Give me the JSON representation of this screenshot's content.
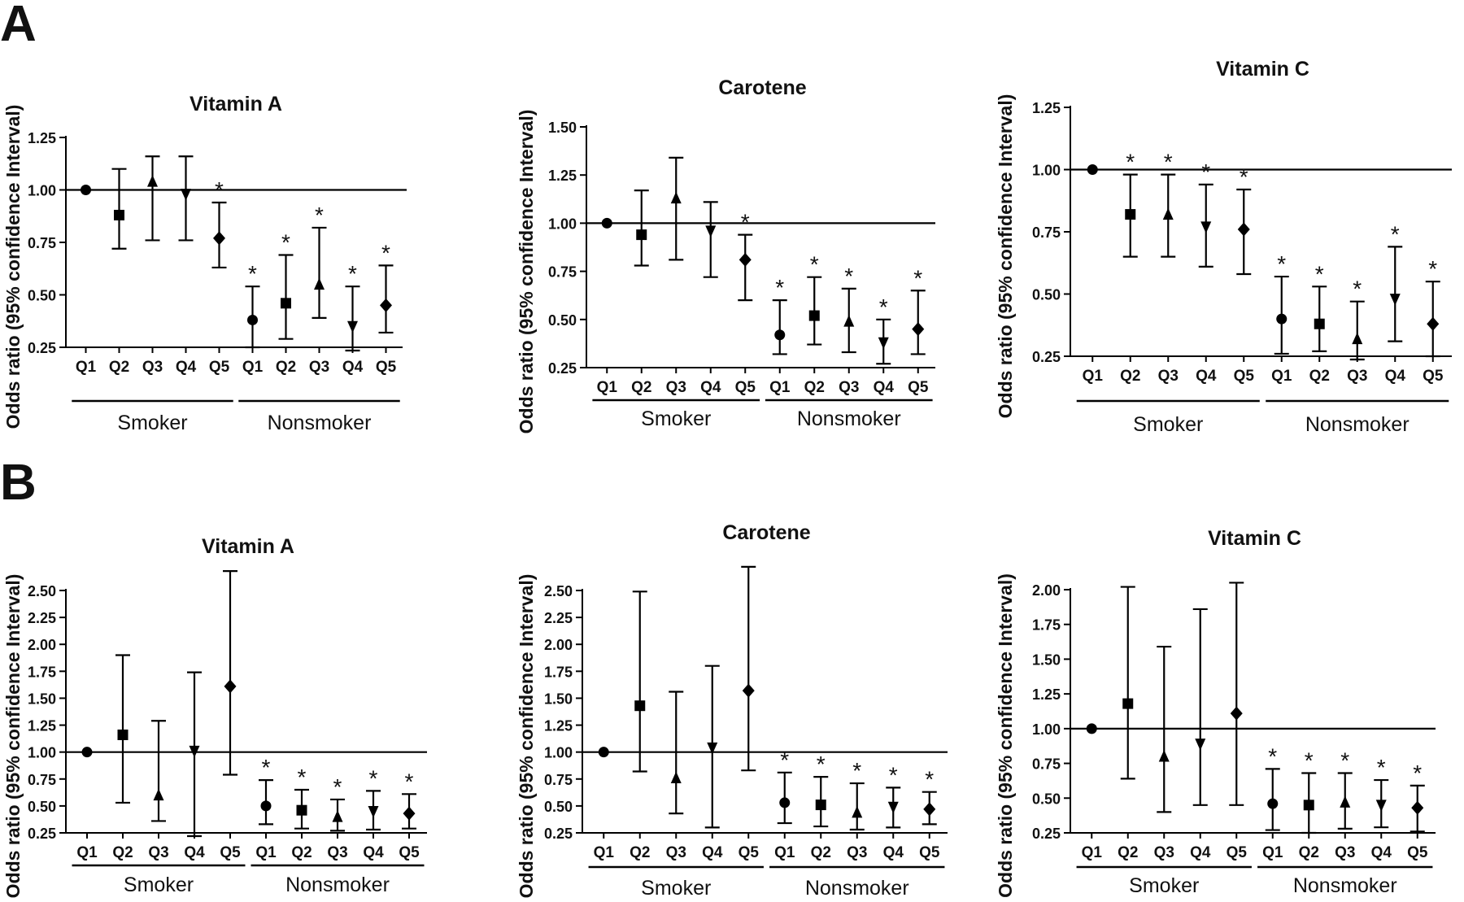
{
  "panel_labels": [
    "A",
    "B"
  ],
  "chart_data": [
    {
      "panel": "A",
      "type": "scatter",
      "title": "Vitamin A",
      "ylabel": "Odds ratio (95% confidence Interval)",
      "ylim": [
        0.25,
        1.25
      ],
      "yticks": [
        "0.25",
        "0.50",
        "0.75",
        "1.00",
        "1.25"
      ],
      "categories": [
        "Q1",
        "Q2",
        "Q3",
        "Q4",
        "Q5",
        "Q1",
        "Q2",
        "Q3",
        "Q4",
        "Q5"
      ],
      "groups": [
        {
          "label": "Smoker",
          "from": 0,
          "to": 4
        },
        {
          "label": "Nonsmoker",
          "from": 5,
          "to": 9
        }
      ],
      "reference_line": 1.0,
      "values": [
        1.0,
        0.88,
        1.04,
        0.98,
        0.77,
        0.38,
        0.46,
        0.55,
        0.35,
        0.45
      ],
      "lower": [
        null,
        0.72,
        0.76,
        0.76,
        0.63,
        0.25,
        0.29,
        0.39,
        0.2,
        0.32
      ],
      "upper": [
        null,
        1.1,
        1.16,
        1.16,
        0.94,
        0.54,
        0.69,
        0.82,
        0.54,
        0.64
      ],
      "significant": [
        false,
        false,
        false,
        false,
        true,
        true,
        true,
        true,
        true,
        true
      ],
      "markers": [
        "circle",
        "square",
        "triangle",
        "triangle-down",
        "diamond",
        "circle",
        "square",
        "triangle",
        "triangle-down",
        "diamond"
      ],
      "grid": false
    },
    {
      "panel": "A",
      "type": "scatter",
      "title": "Carotene",
      "ylabel": "Odds ratio (95% confidence Interval)",
      "ylim": [
        0.25,
        1.5
      ],
      "yticks": [
        "0.25",
        "0.50",
        "0.75",
        "1.00",
        "1.25",
        "1.50"
      ],
      "categories": [
        "Q1",
        "Q2",
        "Q3",
        "Q4",
        "Q5",
        "Q1",
        "Q2",
        "Q3",
        "Q4",
        "Q5"
      ],
      "groups": [
        {
          "label": "Smoker",
          "from": 0,
          "to": 4
        },
        {
          "label": "Nonsmoker",
          "from": 5,
          "to": 9
        }
      ],
      "reference_line": 1.0,
      "values": [
        1.0,
        0.94,
        1.13,
        0.96,
        0.81,
        0.42,
        0.52,
        0.49,
        0.38,
        0.45
      ],
      "lower": [
        null,
        0.78,
        0.81,
        0.72,
        0.6,
        0.32,
        0.37,
        0.33,
        0.27,
        0.32
      ],
      "upper": [
        null,
        1.17,
        1.34,
        1.11,
        0.94,
        0.6,
        0.72,
        0.66,
        0.5,
        0.65
      ],
      "significant": [
        false,
        false,
        false,
        false,
        true,
        true,
        true,
        true,
        true,
        true
      ],
      "markers": [
        "circle",
        "square",
        "triangle",
        "triangle-down",
        "diamond",
        "circle",
        "square",
        "triangle",
        "triangle-down",
        "diamond"
      ],
      "grid": false
    },
    {
      "panel": "A",
      "type": "scatter",
      "title": "Vitamin C",
      "ylabel": "Odds ratio (95% confidence Interval)",
      "ylim": [
        0.25,
        1.25
      ],
      "yticks": [
        "0.25",
        "0.50",
        "0.75",
        "1.00",
        "1.25"
      ],
      "categories": [
        "Q1",
        "Q2",
        "Q3",
        "Q4",
        "Q5",
        "Q1",
        "Q2",
        "Q3",
        "Q4",
        "Q5"
      ],
      "groups": [
        {
          "label": "Smoker",
          "from": 0,
          "to": 4
        },
        {
          "label": "Nonsmoker",
          "from": 5,
          "to": 9
        }
      ],
      "reference_line": 1.0,
      "values": [
        1.0,
        0.82,
        0.82,
        0.77,
        0.76,
        0.4,
        0.38,
        0.32,
        0.48,
        0.38
      ],
      "lower": [
        null,
        0.65,
        0.65,
        0.61,
        0.58,
        0.26,
        0.27,
        0.22,
        0.31,
        0.25
      ],
      "upper": [
        null,
        0.98,
        0.98,
        0.94,
        0.92,
        0.57,
        0.53,
        0.47,
        0.69,
        0.55
      ],
      "significant": [
        false,
        true,
        true,
        true,
        true,
        true,
        true,
        true,
        true,
        true
      ],
      "markers": [
        "circle",
        "square",
        "triangle",
        "triangle-down",
        "diamond",
        "circle",
        "square",
        "triangle",
        "triangle-down",
        "diamond"
      ],
      "grid": false
    },
    {
      "panel": "B",
      "type": "scatter",
      "title": "Vitamin A",
      "ylabel": "Odds ratio (95% confidence Interval)",
      "ylim": [
        0.25,
        2.5
      ],
      "yticks": [
        "0.25",
        "0.50",
        "0.75",
        "1.00",
        "1.25",
        "1.50",
        "1.75",
        "2.00",
        "2.25",
        "2.50"
      ],
      "categories": [
        "Q1",
        "Q2",
        "Q3",
        "Q4",
        "Q5",
        "Q1",
        "Q2",
        "Q3",
        "Q4",
        "Q5"
      ],
      "groups": [
        {
          "label": "Smoker",
          "from": 0,
          "to": 4
        },
        {
          "label": "Nonsmoker",
          "from": 5,
          "to": 9
        }
      ],
      "reference_line": 1.0,
      "values": [
        1.0,
        1.16,
        0.6,
        1.01,
        1.61,
        0.5,
        0.46,
        0.4,
        0.45,
        0.43
      ],
      "lower": [
        null,
        0.53,
        0.36,
        0.17,
        0.79,
        0.33,
        0.29,
        0.27,
        0.28,
        0.29
      ],
      "upper": [
        null,
        1.9,
        1.29,
        1.74,
        2.68,
        0.74,
        0.65,
        0.56,
        0.64,
        0.61
      ],
      "significant": [
        false,
        false,
        false,
        false,
        false,
        true,
        true,
        true,
        true,
        true
      ],
      "markers": [
        "circle",
        "square",
        "triangle",
        "triangle-down",
        "diamond",
        "circle",
        "square",
        "triangle",
        "triangle-down",
        "diamond"
      ],
      "grid": false
    },
    {
      "panel": "B",
      "type": "scatter",
      "title": "Carotene",
      "ylabel": "Odds ratio (95% confidence Interval)",
      "ylim": [
        0.25,
        2.5
      ],
      "yticks": [
        "0.25",
        "0.50",
        "0.75",
        "1.00",
        "1.25",
        "1.50",
        "1.75",
        "2.00",
        "2.25",
        "2.50"
      ],
      "categories": [
        "Q1",
        "Q2",
        "Q3",
        "Q4",
        "Q5",
        "Q1",
        "Q2",
        "Q3",
        "Q4",
        "Q5"
      ],
      "groups": [
        {
          "label": "Smoker",
          "from": 0,
          "to": 4
        },
        {
          "label": "Nonsmoker",
          "from": 5,
          "to": 9
        }
      ],
      "reference_line": 1.0,
      "values": [
        1.0,
        1.43,
        0.76,
        1.04,
        1.57,
        0.53,
        0.51,
        0.44,
        0.49,
        0.47
      ],
      "lower": [
        null,
        0.82,
        0.43,
        0.3,
        0.83,
        0.34,
        0.31,
        0.28,
        0.3,
        0.33
      ],
      "upper": [
        null,
        2.49,
        1.56,
        1.8,
        2.72,
        0.81,
        0.77,
        0.71,
        0.67,
        0.63
      ],
      "significant": [
        false,
        false,
        false,
        false,
        false,
        true,
        true,
        true,
        true,
        true
      ],
      "markers": [
        "circle",
        "square",
        "triangle",
        "triangle-down",
        "diamond",
        "circle",
        "square",
        "triangle",
        "triangle-down",
        "diamond"
      ],
      "grid": false
    },
    {
      "panel": "B",
      "type": "scatter",
      "title": "Vitamin C",
      "ylabel": "Odds ratio (95% confidence Interval)",
      "ylim": [
        0.25,
        2.0
      ],
      "yticks": [
        "0.25",
        "0.50",
        "0.75",
        "1.00",
        "1.25",
        "1.50",
        "1.75",
        "2.00"
      ],
      "categories": [
        "Q1",
        "Q2",
        "Q3",
        "Q4",
        "Q5",
        "Q1",
        "Q2",
        "Q3",
        "Q4",
        "Q5"
      ],
      "groups": [
        {
          "label": "Smoker",
          "from": 0,
          "to": 4
        },
        {
          "label": "Nonsmoker",
          "from": 5,
          "to": 9
        }
      ],
      "reference_line": 1.0,
      "values": [
        1.0,
        1.18,
        0.8,
        0.89,
        1.11,
        0.46,
        0.45,
        0.47,
        0.45,
        0.43
      ],
      "lower": [
        null,
        0.64,
        0.4,
        0.45,
        0.45,
        0.27,
        0.25,
        0.28,
        0.29,
        0.26
      ],
      "upper": [
        null,
        2.02,
        1.59,
        1.86,
        2.05,
        0.71,
        0.68,
        0.68,
        0.63,
        0.59
      ],
      "significant": [
        false,
        false,
        false,
        false,
        false,
        true,
        true,
        true,
        true,
        true
      ],
      "markers": [
        "circle",
        "square",
        "triangle",
        "triangle-down",
        "diamond",
        "circle",
        "square",
        "triangle",
        "triangle-down",
        "diamond"
      ],
      "grid": false
    }
  ]
}
